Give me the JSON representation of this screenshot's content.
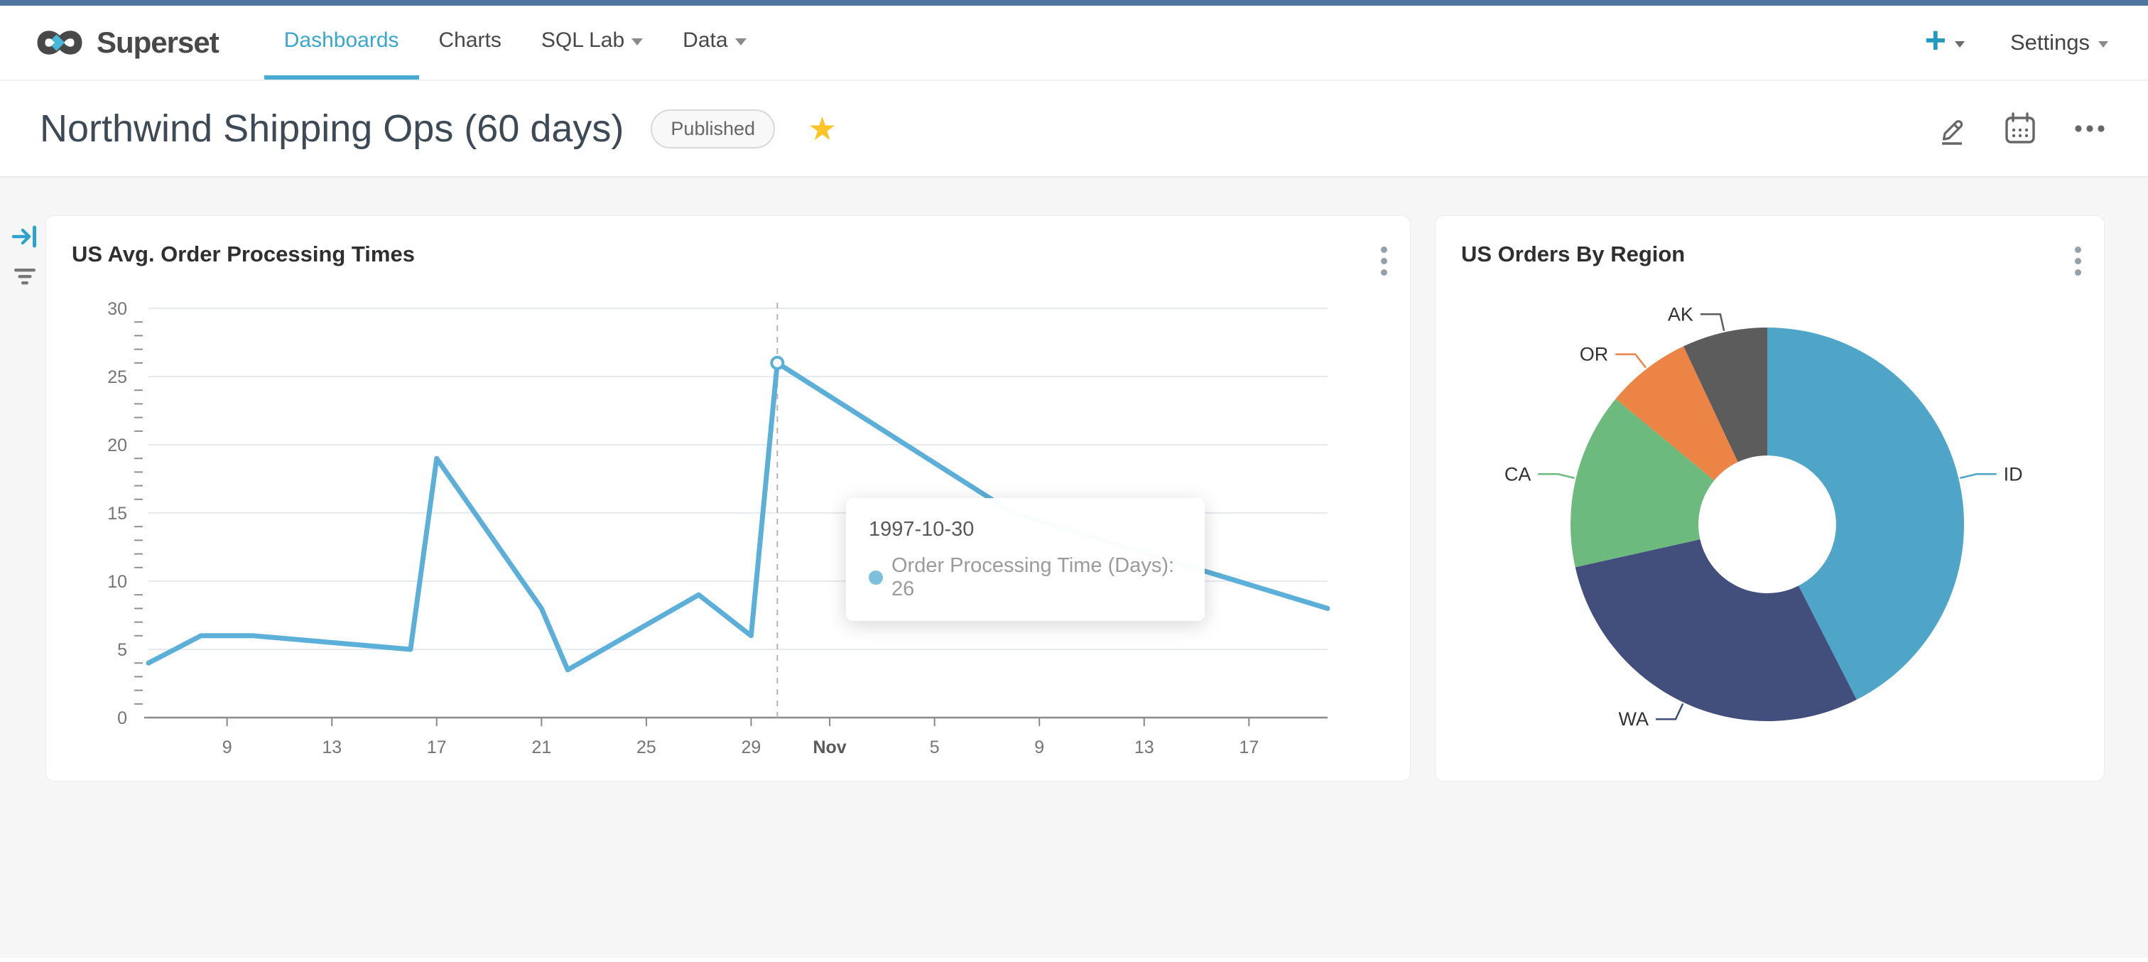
{
  "topbar": {
    "brand": "Superset",
    "nav": [
      {
        "label": "Dashboards",
        "active": true,
        "has_caret": false
      },
      {
        "label": "Charts",
        "active": false,
        "has_caret": false
      },
      {
        "label": "SQL Lab",
        "active": false,
        "has_caret": true
      },
      {
        "label": "Data",
        "active": false,
        "has_caret": true
      }
    ],
    "plus_label": "+",
    "settings_label": "Settings"
  },
  "title_bar": {
    "title": "Northwind Shipping Ops (60 days)",
    "badge": "Published"
  },
  "cards": [
    {
      "title": "US Avg. Order Processing Times"
    },
    {
      "title": "US Orders By Region"
    }
  ],
  "tooltip": {
    "date": "1997-10-30",
    "text": "Order Processing Time (Days): 26"
  },
  "colors": {
    "accent": "#38A6CE",
    "nav_underline": "#49ABD3",
    "line": "#5BAFD8",
    "tooltip_dot": "#7CC0DE",
    "star": "#FCC425",
    "grid": "#E7EAF0",
    "axis": "#8C8C8C",
    "tick_label": "#757575"
  },
  "chart_data": [
    {
      "type": "line",
      "title": "US Avg. Order Processing Times",
      "series_name": "Order Processing Time (Days)",
      "x_domain": [
        "1997-10-06",
        "1997-11-20"
      ],
      "ylim": [
        0,
        30
      ],
      "y_ticks": [
        0,
        5,
        10,
        15,
        20,
        25,
        30
      ],
      "grid": true,
      "legend_position": "none",
      "points": [
        [
          "1997-10-06",
          4
        ],
        [
          "1997-10-08",
          6
        ],
        [
          "1997-10-10",
          6
        ],
        [
          "1997-10-16",
          5
        ],
        [
          "1997-10-17",
          19
        ],
        [
          "1997-10-21",
          8
        ],
        [
          "1997-10-22",
          3.5
        ],
        [
          "1997-10-27",
          9
        ],
        [
          "1997-10-29",
          6
        ],
        [
          "1997-10-30",
          26
        ],
        [
          "1997-11-08",
          15
        ],
        [
          "1997-11-20",
          8
        ]
      ],
      "x_ticks": [
        {
          "date": "1997-10-09",
          "label": "9"
        },
        {
          "date": "1997-10-13",
          "label": "13"
        },
        {
          "date": "1997-10-17",
          "label": "17"
        },
        {
          "date": "1997-10-21",
          "label": "21"
        },
        {
          "date": "1997-10-25",
          "label": "25"
        },
        {
          "date": "1997-10-29",
          "label": "29"
        },
        {
          "date": "1997-11-01",
          "label": "Nov",
          "bold": true
        },
        {
          "date": "1997-11-05",
          "label": "5"
        },
        {
          "date": "1997-11-09",
          "label": "9"
        },
        {
          "date": "1997-11-13",
          "label": "13"
        },
        {
          "date": "1997-11-17",
          "label": "17"
        }
      ],
      "highlight": {
        "date": "1997-10-30",
        "value": 26
      },
      "line_color": "#5BAFD8"
    },
    {
      "type": "pie",
      "title": "US Orders By Region",
      "donut": true,
      "inner_radius_ratio": 0.35,
      "clockwise_from_top": true,
      "labels": [
        "ID",
        "WA",
        "CA",
        "OR",
        "AK"
      ],
      "values_pct": [
        42.5,
        29,
        14.5,
        7,
        7
      ],
      "colors": [
        "#4EA5C8",
        "#424F7D",
        "#6CBA7D",
        "#EC8445",
        "#5C5C5C"
      ]
    }
  ]
}
